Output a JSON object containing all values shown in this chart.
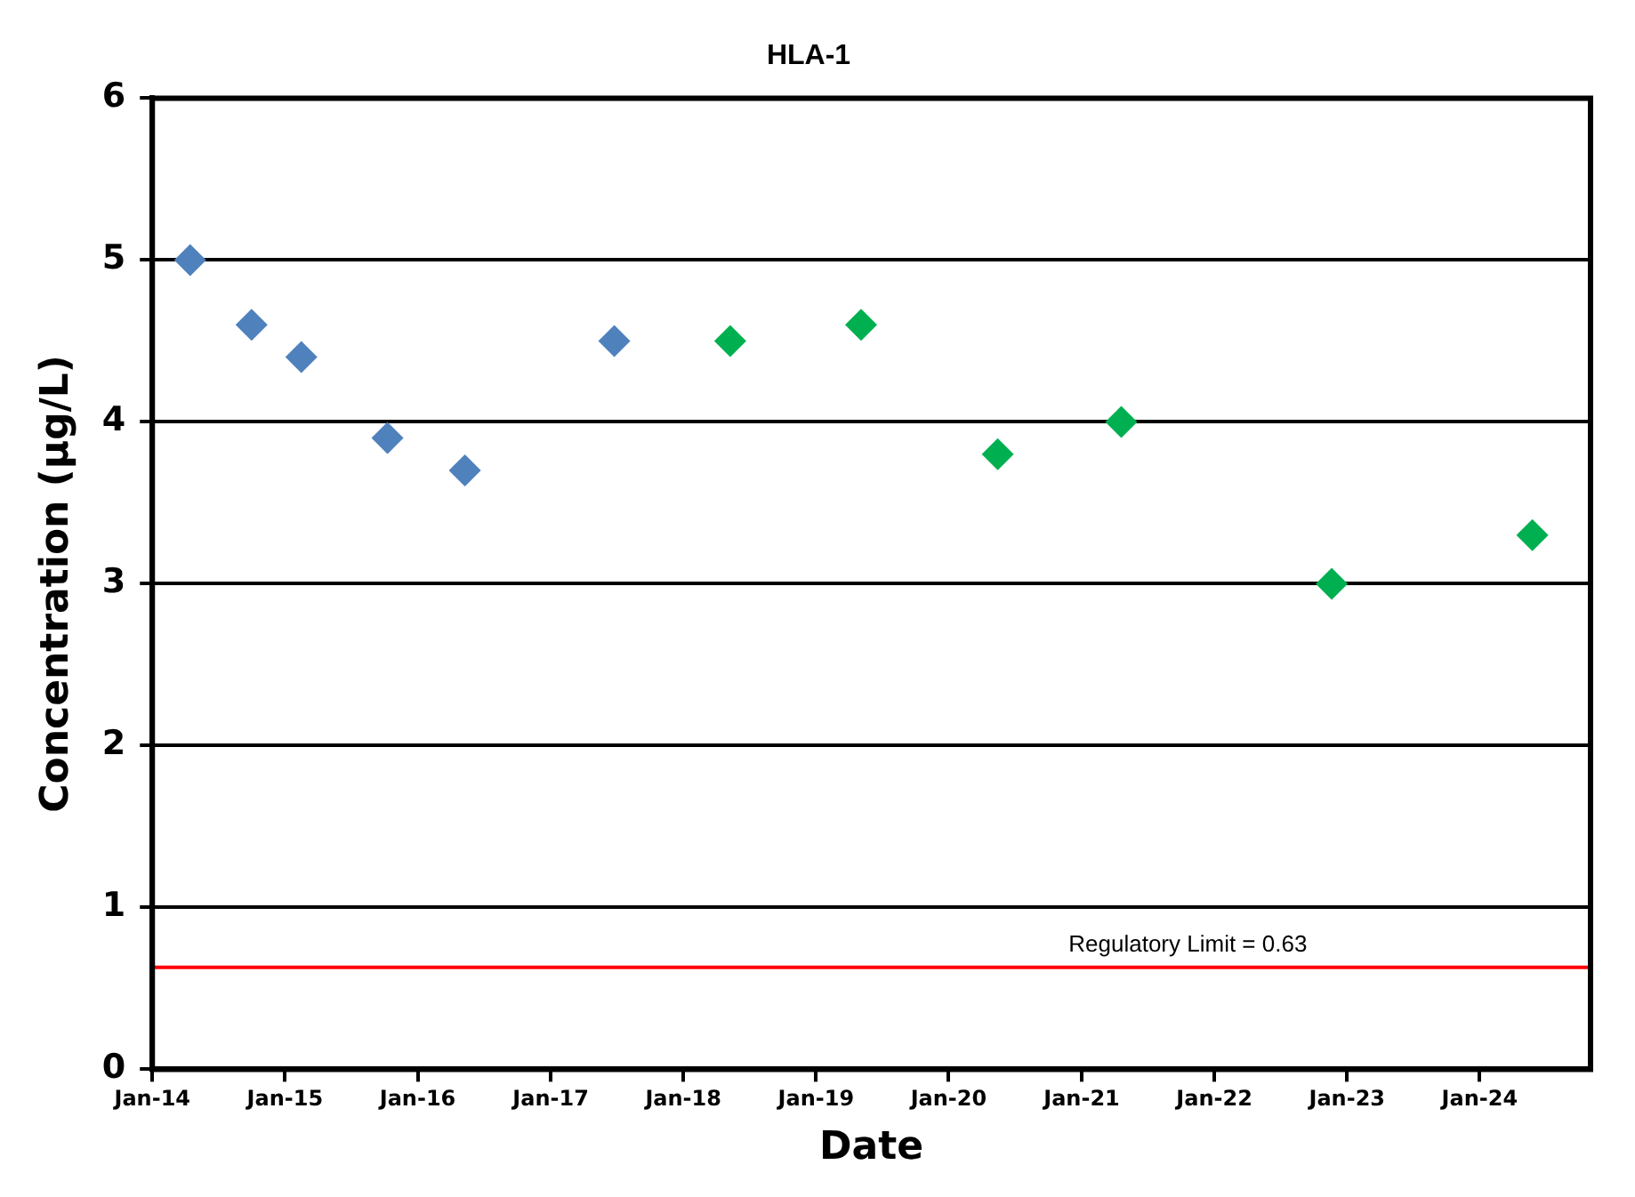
{
  "chart_data": {
    "type": "scatter",
    "title": "HLA-1",
    "xlabel": "Date",
    "ylabel": "Concentration (µg/L)",
    "xlim": [
      "2014-01-01",
      "2024-11-01"
    ],
    "xticks": [
      {
        "value": "2014-01-01",
        "label": "Jan-14"
      },
      {
        "value": "2015-01-01",
        "label": "Jan-15"
      },
      {
        "value": "2016-01-01",
        "label": "Jan-16"
      },
      {
        "value": "2017-01-01",
        "label": "Jan-17"
      },
      {
        "value": "2018-01-01",
        "label": "Jan-18"
      },
      {
        "value": "2019-01-01",
        "label": "Jan-19"
      },
      {
        "value": "2020-01-01",
        "label": "Jan-20"
      },
      {
        "value": "2021-01-01",
        "label": "Jan-21"
      },
      {
        "value": "2022-01-01",
        "label": "Jan-22"
      },
      {
        "value": "2023-01-01",
        "label": "Jan-23"
      },
      {
        "value": "2024-01-01",
        "label": "Jan-24"
      }
    ],
    "ylim": [
      0,
      6
    ],
    "yticks": [
      0,
      1,
      2,
      3,
      4,
      5,
      6
    ],
    "grid": "y",
    "legend": false,
    "marker": "diamond",
    "series": [
      {
        "color": "#4f81bd",
        "x": [
          "2014-04-15",
          "2014-10-01",
          "2015-02-15",
          "2015-10-10",
          "2016-05-10",
          "2017-06-25"
        ],
        "values": [
          5.0,
          4.6,
          4.4,
          3.9,
          3.7,
          4.5
        ]
      },
      {
        "color": "#00b050",
        "x": [
          "2018-05-10",
          "2019-05-05",
          "2020-05-15",
          "2021-04-20",
          "2022-11-20",
          "2024-05-25"
        ],
        "values": [
          4.5,
          4.6,
          3.8,
          4.0,
          3.0,
          3.3
        ]
      }
    ],
    "ref_lines": [
      {
        "axis": "y",
        "value": 0.63,
        "label": "Regulatory Limit = 0.63",
        "color": "#ff0000"
      }
    ]
  }
}
